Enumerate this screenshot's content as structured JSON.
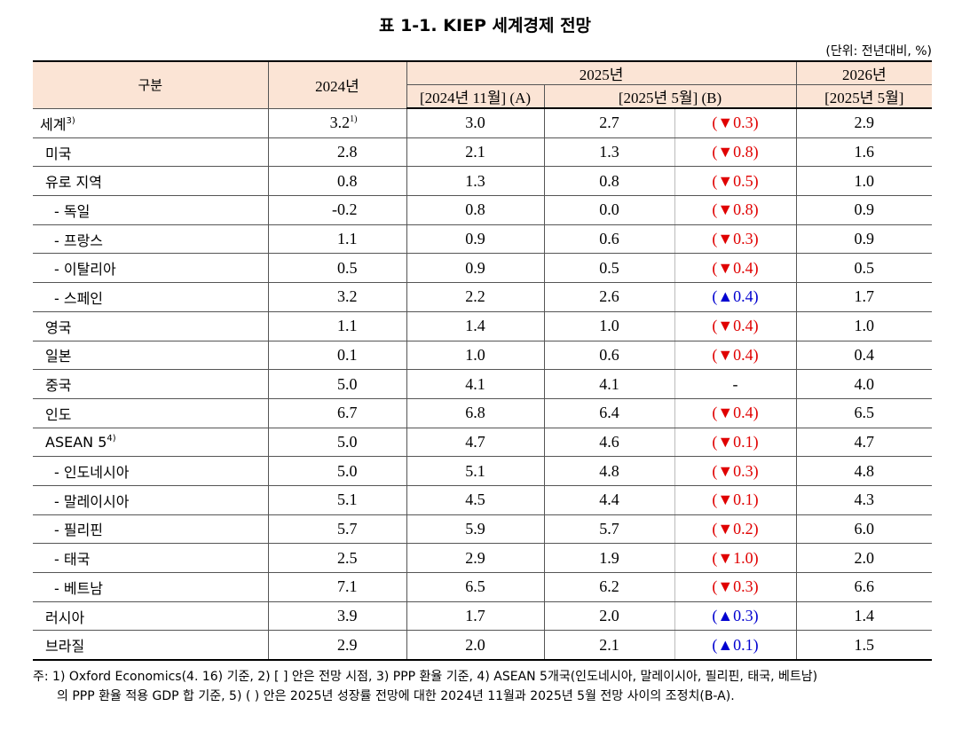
{
  "title": "표 1-1. KIEP 세계경제 전망",
  "unit": "(단위: 전년대비, %)",
  "header": {
    "group": "구분",
    "y2024": "2024년",
    "y2025": "2025년",
    "y2026": "2026년",
    "nov2024": "[2024년 11월] (A)",
    "may2025": "[2025년 5월] (B)",
    "may2025_2026": "[2025년 5월]"
  },
  "rows": [
    {
      "label": "세계",
      "label_sup": "3)",
      "y2024": "3.2",
      "y2024_sup": "1)",
      "a": "3.0",
      "b": "2.7",
      "diff": "(▼0.3)",
      "y2026": "2.9"
    },
    {
      "label": "미국",
      "y2024": "2.8",
      "a": "2.1",
      "b": "1.3",
      "diff": "(▼0.8)",
      "y2026": "1.6"
    },
    {
      "label": "유로 지역",
      "y2024": "0.8",
      "a": "1.3",
      "b": "0.8",
      "diff": "(▼0.5)",
      "y2026": "1.0"
    },
    {
      "label": "- 독일",
      "y2024": "-0.2",
      "a": "0.8",
      "b": "0.0",
      "diff": "(▼0.8)",
      "y2026": "0.9"
    },
    {
      "label": "- 프랑스",
      "y2024": "1.1",
      "a": "0.9",
      "b": "0.6",
      "diff": "(▼0.3)",
      "y2026": "0.9"
    },
    {
      "label": "- 이탈리아",
      "y2024": "0.5",
      "a": "0.9",
      "b": "0.5",
      "diff": "(▼0.4)",
      "y2026": "0.5"
    },
    {
      "label": "- 스페인",
      "y2024": "3.2",
      "a": "2.2",
      "b": "2.6",
      "diff": "(▲0.4)",
      "y2026": "1.7"
    },
    {
      "label": "영국",
      "y2024": "1.1",
      "a": "1.4",
      "b": "1.0",
      "diff": "(▼0.4)",
      "y2026": "1.0"
    },
    {
      "label": "일본",
      "y2024": "0.1",
      "a": "1.0",
      "b": "0.6",
      "diff": "(▼0.4)",
      "y2026": "0.4"
    },
    {
      "label": "중국",
      "y2024": "5.0",
      "a": "4.1",
      "b": "4.1",
      "diff": "-",
      "y2026": "4.0"
    },
    {
      "label": "인도",
      "y2024": "6.7",
      "a": "6.8",
      "b": "6.4",
      "diff": "(▼0.4)",
      "y2026": "6.5"
    },
    {
      "label": "ASEAN 5",
      "label_sup": "4)",
      "y2024": "5.0",
      "a": "4.7",
      "b": "4.6",
      "diff": "(▼0.1)",
      "y2026": "4.7"
    },
    {
      "label": "- 인도네시아",
      "y2024": "5.0",
      "a": "5.1",
      "b": "4.8",
      "diff": "(▼0.3)",
      "y2026": "4.8"
    },
    {
      "label": "- 말레이시아",
      "y2024": "5.1",
      "a": "4.5",
      "b": "4.4",
      "diff": "(▼0.1)",
      "y2026": "4.3"
    },
    {
      "label": "- 필리핀",
      "y2024": "5.7",
      "a": "5.9",
      "b": "5.7",
      "diff": "(▼0.2)",
      "y2026": "6.0"
    },
    {
      "label": "- 태국",
      "y2024": "2.5",
      "a": "2.9",
      "b": "1.9",
      "diff": "(▼1.0)",
      "y2026": "2.0"
    },
    {
      "label": "- 베트남",
      "y2024": "7.1",
      "a": "6.5",
      "b": "6.2",
      "diff": "(▼0.3)",
      "y2026": "6.6"
    },
    {
      "label": "러시아",
      "y2024": "3.9",
      "a": "1.7",
      "b": "2.0",
      "diff": "(▲0.3)",
      "y2026": "1.4"
    },
    {
      "label": "브라질",
      "y2024": "2.9",
      "a": "2.0",
      "b": "2.1",
      "diff": "(▲0.1)",
      "y2026": "1.5"
    }
  ],
  "notes": [
    "주: 1) Oxford Economics(4. 16) 기준, 2) [ ] 안은 전망 시점, 3) PPP 환율 기준, 4) ASEAN 5개국(인도네시아, 말레이시아, 필리핀, 태국, 베트남)",
    "의 PPP 환율 적용 GDP 합 기준, 5) ( ) 안은 2025년 성장률 전망에 대한 2024년 11월과 2025년 5월 전망 사이의 조정치(B-A)."
  ]
}
